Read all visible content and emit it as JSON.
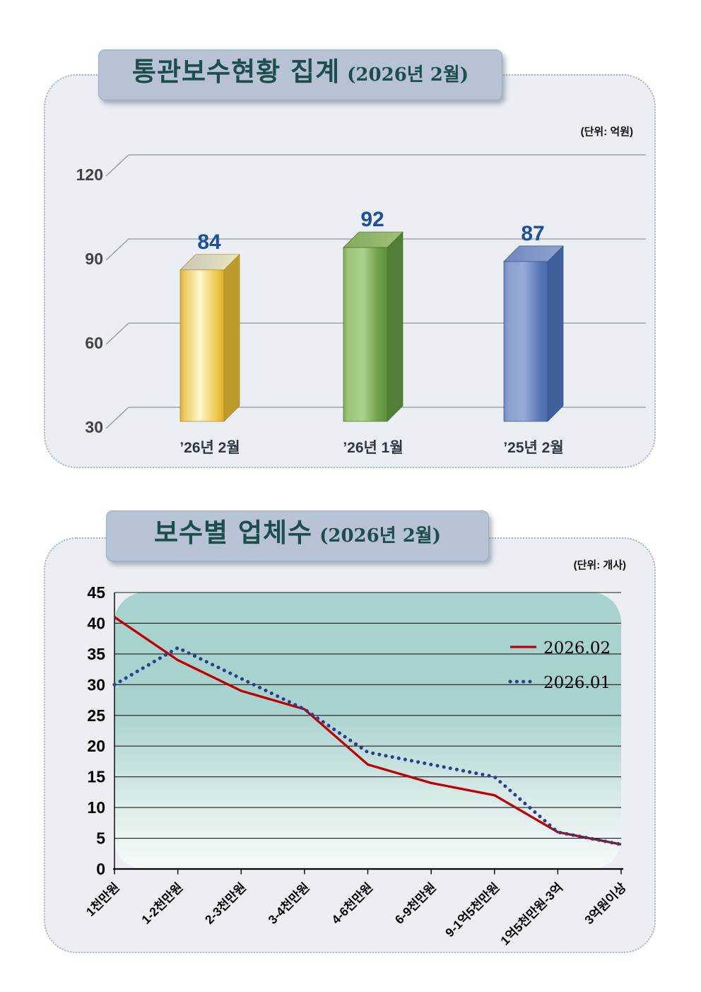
{
  "section1": {
    "title": "통관보수현황 집계",
    "title_suffix": "(2026년 2월)",
    "unit_label": "(단위: 억원)"
  },
  "section2": {
    "title": "보수별 업체수",
    "title_suffix": "(2026년 2월)",
    "unit_label": "(단위: 개사)"
  },
  "chart_data": [
    {
      "type": "bar",
      "style": "3d-column",
      "title": "통관보수현황 집계 (2026년 2월)",
      "unit": "억원",
      "categories": [
        "’26년 2월",
        "’26년 1월",
        "’25년 2월"
      ],
      "values": [
        84,
        92,
        87
      ],
      "ylim": [
        30,
        120
      ],
      "yticks": [
        30,
        60,
        90,
        120
      ],
      "grid": true,
      "value_label_color": "#1c4f9c",
      "category_label_color": "#2f3745",
      "axis_label_color": "#3f4347",
      "gridline_color": "#8f959c",
      "bar_colors": [
        {
          "face": [
            "#dfaf2e",
            "#eccb62",
            "#fdf6cf",
            "#f2cd52",
            "#ddab29"
          ],
          "side": "#bd9b2b",
          "top_from": "#c9c6ba",
          "top_to": "#ece5bd",
          "stroke": "#a8861f"
        },
        {
          "face": [
            "#7fae55",
            "#9cc47a",
            "#abd08b",
            "#6f9d49",
            "#5f8f3f"
          ],
          "side": "#527f36",
          "top_from": "#83aa5e",
          "top_to": "#9dc178",
          "stroke": "#46702e"
        },
        {
          "face": [
            "#6d88c0",
            "#8ba0d0",
            "#98abd8",
            "#5b7ab8",
            "#4a6aaa"
          ],
          "side": "#40609b",
          "top_from": "#7288bf",
          "top_to": "#8fa3cf",
          "stroke": "#35508a"
        }
      ]
    },
    {
      "type": "line",
      "title": "보수별 업체수 (2026년 2월)",
      "unit": "개사",
      "categories": [
        "1천만원",
        "1-2천만원",
        "2-3천만원",
        "3-4천만원",
        "4-6천만원",
        "6-9천만원",
        "9-1억5천만원",
        "1억5천만원-3억",
        "3억원이상"
      ],
      "series": [
        {
          "name": "2026.02",
          "line_style": "solid",
          "color": "#c00000",
          "values": [
            41,
            34,
            29,
            26,
            17,
            14,
            12,
            6,
            4
          ]
        },
        {
          "name": "2026.01",
          "line_style": "dotted",
          "color": "#2b3d8f",
          "values": [
            30,
            36,
            31,
            26,
            19,
            17,
            15,
            6,
            4
          ]
        }
      ],
      "ylim": [
        0,
        45
      ],
      "yticks": [
        0,
        5,
        10,
        15,
        20,
        25,
        30,
        35,
        40,
        45
      ],
      "grid": true,
      "legend_position": "top-right",
      "plot_bg": "#a8d2ce",
      "gridline_color": "#1c1c1c",
      "axis_color": "#000000",
      "tick_label_color": "#000000"
    }
  ]
}
